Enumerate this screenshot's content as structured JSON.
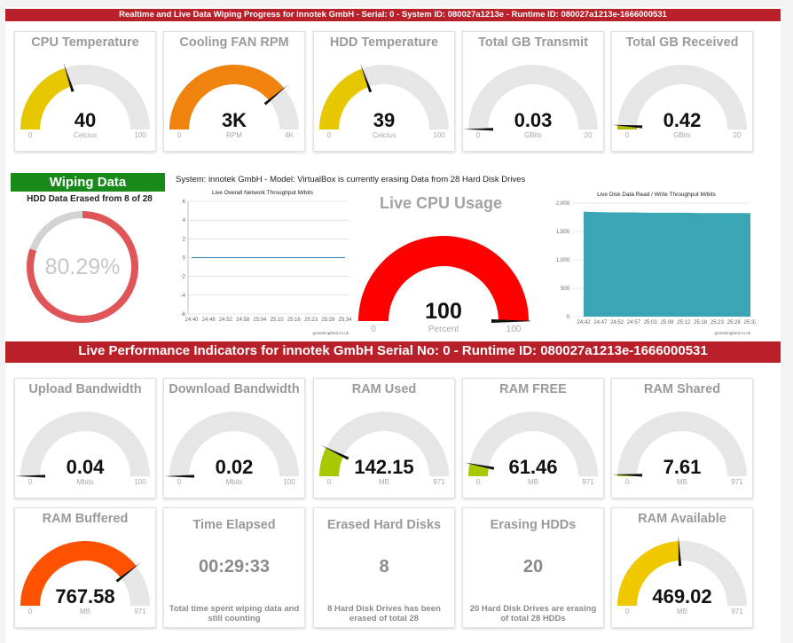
{
  "header": {
    "banner": "Realtime and Live Data Wiping Progress for innotek GmbH - Serial: 0 - System ID: 080027a1213e - Runtime ID: 080027a1213e-1666000531"
  },
  "gauges_top": [
    {
      "title": "CPU Temperature",
      "value": "40",
      "unit": "Celcius",
      "min": "0",
      "max": "100",
      "level": 0.4,
      "color": "#e6c700"
    },
    {
      "title": "Cooling FAN RPM",
      "value": "3K",
      "unit": "RPM",
      "min": "0",
      "max": "4K",
      "level": 0.78,
      "color": "#f0820e"
    },
    {
      "title": "HDD Temperature",
      "value": "39",
      "unit": "Celcius",
      "min": "0",
      "max": "100",
      "level": 0.39,
      "color": "#e6c700"
    },
    {
      "title": "Total GB Transmit",
      "value": "0.03",
      "unit": "GBits",
      "min": "0",
      "max": "20",
      "level": 0.0015,
      "color": "#aabb00"
    },
    {
      "title": "Total GB Received",
      "value": "0.42",
      "unit": "GBits",
      "min": "0",
      "max": "20",
      "level": 0.021,
      "color": "#aabb00"
    }
  ],
  "wiping": {
    "title": "Wiping Data",
    "subtitle": "HDD Data Erased from 8 of 28",
    "percent_label": "80.29%",
    "percent": 80.29,
    "system_text": "System: innotek GmbH - Model: VirtualBox is currently erasing Data from 28 Hard Disk Drives"
  },
  "network_chart": {
    "chart_data": {
      "type": "line",
      "title": "Live Overall Network Throughput M/bits",
      "x": [
        "24:40",
        "24:46",
        "24:52",
        "24:58",
        "25:04",
        "25:10",
        "25:16",
        "25:23",
        "25:28",
        "25:34"
      ],
      "series": [
        {
          "values": [
            0,
            0,
            0,
            0,
            0,
            0,
            0,
            0,
            0,
            0
          ]
        }
      ],
      "ylim": [
        -6,
        6
      ],
      "yticks": [
        "6",
        "4",
        "2",
        "0",
        "-2",
        "-4",
        "-6"
      ],
      "credit": "grosstringfand.co.uk"
    }
  },
  "cpu_usage": {
    "title": "Live CPU Usage",
    "value": "100",
    "unit": "Percent",
    "min": "0",
    "max": "100",
    "level": 1.0,
    "color": "#ff0000"
  },
  "disk_chart": {
    "chart_data": {
      "type": "area",
      "title": "Live Disk Data Read / Write Throughput M/bits",
      "x": [
        "24:42",
        "24:47",
        "24:52",
        "24:57",
        "25:03",
        "25:08",
        "25:12",
        "25:18",
        "25:23",
        "25:28",
        "25:32"
      ],
      "series": [
        {
          "values": [
            1850,
            1840,
            1835,
            1835,
            1830,
            1830,
            1830,
            1825,
            1825,
            1825,
            1825
          ]
        }
      ],
      "ylim": [
        0,
        2000
      ],
      "yticks": [
        "2,000",
        "1,500",
        "1,000",
        "500",
        "0"
      ],
      "credit": "grosstringfand.co.uk"
    }
  },
  "perf_banner": "Live Performance Indicators for innotek GmbH Serial No: 0 - Runtime ID: 080027a1213e-1666000531",
  "gauges_row1": [
    {
      "title": "Upload Bandwidth",
      "value": "0.04",
      "unit": "Mbits",
      "min": "0",
      "max": "100",
      "level": 0.0004,
      "color": "#aabb00"
    },
    {
      "title": "Download Bandwidth",
      "value": "0.02",
      "unit": "Mbits",
      "min": "0",
      "max": "100",
      "level": 0.0002,
      "color": "#aabb00"
    },
    {
      "title": "RAM Used",
      "value": "142.15",
      "unit": "MB",
      "min": "0",
      "max": "971",
      "level": 0.146,
      "color": "#aac800"
    },
    {
      "title": "RAM FREE",
      "value": "61.46",
      "unit": "MB",
      "min": "0",
      "max": "971",
      "level": 0.063,
      "color": "#aac800"
    },
    {
      "title": "RAM Shared",
      "value": "7.61",
      "unit": "MB",
      "min": "0",
      "max": "971",
      "level": 0.008,
      "color": "#aac800"
    }
  ],
  "row2": {
    "ram_buffered": {
      "title": "RAM Buffered",
      "value": "767.58",
      "unit": "MB",
      "min": "0",
      "max": "971",
      "level": 0.79,
      "color": "#ff5200"
    },
    "time_elapsed": {
      "title": "Time Elapsed",
      "value": "00:29:33",
      "desc": "Total time spent wiping data and still counting"
    },
    "erased_disks": {
      "title": "Erased Hard Disks",
      "value": "8",
      "desc": "8 Hard Disk Drives has been erased of total 28"
    },
    "erasing_hdds": {
      "title": "Erasing HDDs",
      "value": "20",
      "desc": "20 Hard Disk Drives are erasing of total 28 HDDs"
    },
    "ram_available": {
      "title": "RAM Available",
      "value": "469.02",
      "unit": "MB",
      "min": "0",
      "max": "971",
      "level": 0.483,
      "color": "#f0c800"
    }
  }
}
